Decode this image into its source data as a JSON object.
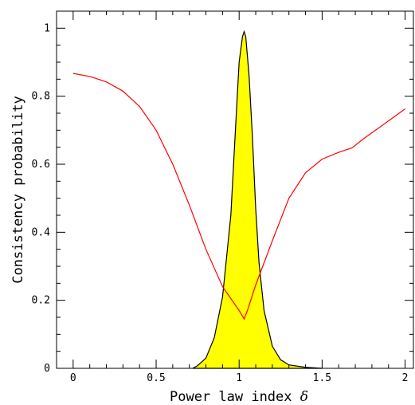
{
  "chart_data": {
    "type": "line",
    "xlabel": "Power law index",
    "xlabel_symbol": "δ",
    "ylabel": "Consistency probability",
    "xlim": [
      -0.1,
      2.05
    ],
    "ylim": [
      0,
      1.05
    ],
    "x_ticks": [
      0,
      0.5,
      1,
      1.5,
      2
    ],
    "x_tick_labels": [
      "0",
      "0.5",
      "1",
      "1.5",
      "2"
    ],
    "y_ticks": [
      0,
      0.2,
      0.4,
      0.6,
      0.8,
      1
    ],
    "y_tick_labels": [
      "0",
      "0.2",
      "0.4",
      "0.6",
      "0.8",
      "1"
    ],
    "series": [
      {
        "color": "#ff0000",
        "fill": "none",
        "points": [
          [
            0.0,
            0.867
          ],
          [
            0.1,
            0.858
          ],
          [
            0.2,
            0.842
          ],
          [
            0.3,
            0.815
          ],
          [
            0.4,
            0.77
          ],
          [
            0.5,
            0.7
          ],
          [
            0.6,
            0.6
          ],
          [
            0.7,
            0.48
          ],
          [
            0.8,
            0.35
          ],
          [
            0.9,
            0.24
          ],
          [
            1.0,
            0.17
          ],
          [
            1.03,
            0.145
          ],
          [
            1.05,
            0.17
          ],
          [
            1.1,
            0.245
          ],
          [
            1.2,
            0.375
          ],
          [
            1.3,
            0.5
          ],
          [
            1.4,
            0.575
          ],
          [
            1.5,
            0.615
          ],
          [
            1.6,
            0.635
          ],
          [
            1.68,
            0.648
          ],
          [
            1.75,
            0.675
          ],
          [
            1.85,
            0.71
          ],
          [
            1.95,
            0.745
          ],
          [
            2.0,
            0.763
          ]
        ]
      },
      {
        "color": "#000000",
        "fill": "#ffff00",
        "points": [
          [
            0.72,
            0.0
          ],
          [
            0.75,
            0.008
          ],
          [
            0.8,
            0.03
          ],
          [
            0.85,
            0.09
          ],
          [
            0.9,
            0.21
          ],
          [
            0.95,
            0.45
          ],
          [
            0.98,
            0.72
          ],
          [
            1.0,
            0.9
          ],
          [
            1.02,
            0.975
          ],
          [
            1.03,
            0.99
          ],
          [
            1.04,
            0.975
          ],
          [
            1.06,
            0.86
          ],
          [
            1.08,
            0.68
          ],
          [
            1.1,
            0.47
          ],
          [
            1.12,
            0.31
          ],
          [
            1.15,
            0.17
          ],
          [
            1.2,
            0.065
          ],
          [
            1.25,
            0.025
          ],
          [
            1.3,
            0.01
          ],
          [
            1.4,
            0.003
          ],
          [
            1.5,
            0.0
          ]
        ]
      }
    ]
  }
}
